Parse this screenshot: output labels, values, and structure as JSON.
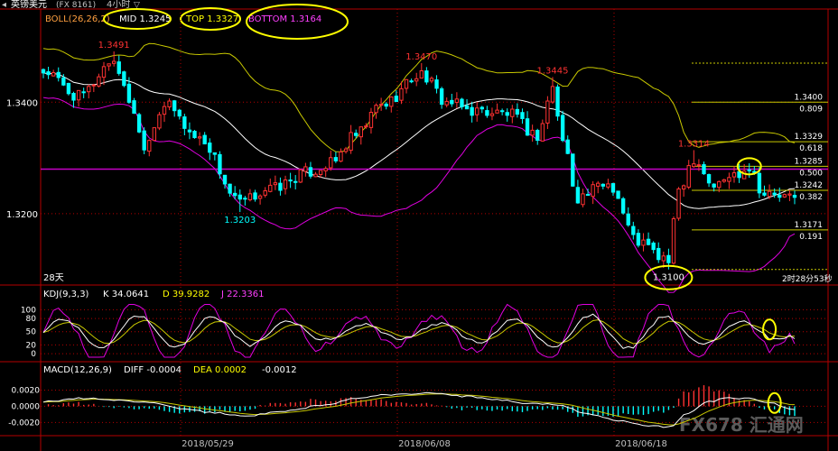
{
  "header": {
    "title": "英镑美元",
    "symbol": "(FX 8161)",
    "period": "4小时",
    "period_arrow": "▽"
  },
  "boll_legend": {
    "name": "BOLL(26,26,2)",
    "mid": "MID 1.3245",
    "top": "TOP 1.3327",
    "bottom": "BOTTOM 1.3164"
  },
  "kdj_legend": {
    "name": "KDJ(9,3,3)",
    "k": "K 34.0641",
    "d": "D 39.9282",
    "j": "J 22.3361"
  },
  "macd_legend": {
    "name": "MACD(12,26,9)",
    "diff": "DIFF -0.0004",
    "dea": "DEA 0.0002",
    "macd": "-0.0012"
  },
  "annotations": {
    "days_label": "28天",
    "countdown": "2时28分53秒",
    "watermark": "FX678 汇通网"
  },
  "colors": {
    "up": "#ff3232",
    "down": "#00ffff",
    "mid": "#ffffff",
    "top": "#c8c800",
    "bottom": "#e000e0",
    "highlight": "#ffff00",
    "hline": "#c800c8"
  },
  "chart_data": [
    {
      "type": "candlestick",
      "title": "英镑美元 4小时",
      "y_ticks": [
        "1.3400",
        "1.3200"
      ],
      "ylim": [
        1.3085,
        1.3525
      ],
      "x_ticks": [
        "2018/05/29",
        "2018/06/08",
        "2018/06/18"
      ],
      "candle_count": 150,
      "price_labels": [
        {
          "text": "1.3491",
          "value": 1.3491,
          "bar": 14,
          "color": "up"
        },
        {
          "text": "1.3203",
          "value": 1.3203,
          "bar": 39,
          "color": "down"
        },
        {
          "text": "1.3470",
          "value": 1.347,
          "bar": 75,
          "color": "up"
        },
        {
          "text": "1.3445",
          "value": 1.3445,
          "bar": 101,
          "color": "up"
        },
        {
          "text": "1.3314",
          "value": 1.3314,
          "bar": 129,
          "color": "up"
        },
        {
          "text": "1.3100",
          "value": 1.31,
          "bar": 124,
          "color": "highlight"
        }
      ],
      "horizontal_line": 1.328,
      "fib_levels": [
        {
          "price": "1.3400",
          "ratio": "0.809",
          "value": 1.34
        },
        {
          "price": "1.3329",
          "ratio": "0.618",
          "value": 1.3329
        },
        {
          "price": "1.3285",
          "ratio": "0.500",
          "value": 1.3285
        },
        {
          "price": "1.3242",
          "ratio": "0.382",
          "value": 1.3242
        },
        {
          "price": "1.3171",
          "ratio": "0.191",
          "value": 1.3171
        }
      ],
      "fib_extremes": [
        1.347,
        1.31
      ],
      "ohlc_anchors": [
        [
          0,
          1.3455
        ],
        [
          7,
          1.341
        ],
        [
          14,
          1.3475
        ],
        [
          17,
          1.3405
        ],
        [
          20,
          1.3325
        ],
        [
          24,
          1.3395
        ],
        [
          31,
          1.3335
        ],
        [
          39,
          1.322
        ],
        [
          45,
          1.3245
        ],
        [
          53,
          1.3275
        ],
        [
          57,
          1.329
        ],
        [
          62,
          1.334
        ],
        [
          67,
          1.3395
        ],
        [
          75,
          1.345
        ],
        [
          80,
          1.34
        ],
        [
          85,
          1.3385
        ],
        [
          92,
          1.338
        ],
        [
          98,
          1.334
        ],
        [
          101,
          1.3425
        ],
        [
          103,
          1.333
        ],
        [
          106,
          1.323
        ],
        [
          112,
          1.3255
        ],
        [
          118,
          1.315
        ],
        [
          123,
          1.312
        ],
        [
          124,
          1.3115
        ],
        [
          126,
          1.3245
        ],
        [
          129,
          1.33
        ],
        [
          133,
          1.325
        ],
        [
          137,
          1.327
        ],
        [
          140,
          1.3285
        ],
        [
          143,
          1.3235
        ],
        [
          149,
          1.3227
        ]
      ],
      "series": [
        {
          "name": "MID",
          "value": 1.3245
        },
        {
          "name": "TOP",
          "value": 1.3327
        },
        {
          "name": "BOTTOM",
          "value": 1.3164
        }
      ]
    },
    {
      "type": "line",
      "title": "KDJ(9,3,3)",
      "y_ticks": [
        "100",
        "80",
        "50",
        "20",
        "0"
      ],
      "ylim": [
        -10,
        115
      ],
      "series": [
        {
          "name": "K",
          "last": 34.0641
        },
        {
          "name": "D",
          "last": 39.9282
        },
        {
          "name": "J",
          "last": 22.3361
        }
      ]
    },
    {
      "type": "bar",
      "title": "MACD(12,26,9)",
      "y_ticks": [
        "0.0020",
        "0.0000",
        "-0.0020"
      ],
      "ylim": [
        -0.0033,
        0.0035
      ],
      "series": [
        {
          "name": "DIFF",
          "last": -0.0004
        },
        {
          "name": "DEA",
          "last": 0.0002
        },
        {
          "name": "MACD",
          "last": -0.0012
        }
      ],
      "macd_anchors": [
        [
          0,
          0.0006
        ],
        [
          8,
          0.001
        ],
        [
          14,
          0.0008
        ],
        [
          22,
          0.0004
        ],
        [
          28,
          -0.0004
        ],
        [
          34,
          -0.0008
        ],
        [
          40,
          -0.0012
        ],
        [
          48,
          -0.0006
        ],
        [
          56,
          0.0002
        ],
        [
          62,
          0.001
        ],
        [
          68,
          0.0014
        ],
        [
          76,
          0.0016
        ],
        [
          84,
          0.0012
        ],
        [
          90,
          0.0008
        ],
        [
          96,
          0.0004
        ],
        [
          102,
          0.0002
        ],
        [
          108,
          -0.001
        ],
        [
          114,
          -0.0018
        ],
        [
          120,
          -0.0024
        ],
        [
          124,
          -0.0026
        ],
        [
          128,
          -0.0008
        ],
        [
          132,
          0.0006
        ],
        [
          136,
          0.001
        ],
        [
          140,
          0.001
        ],
        [
          144,
          0.0004
        ],
        [
          149,
          -0.0004
        ]
      ]
    }
  ]
}
